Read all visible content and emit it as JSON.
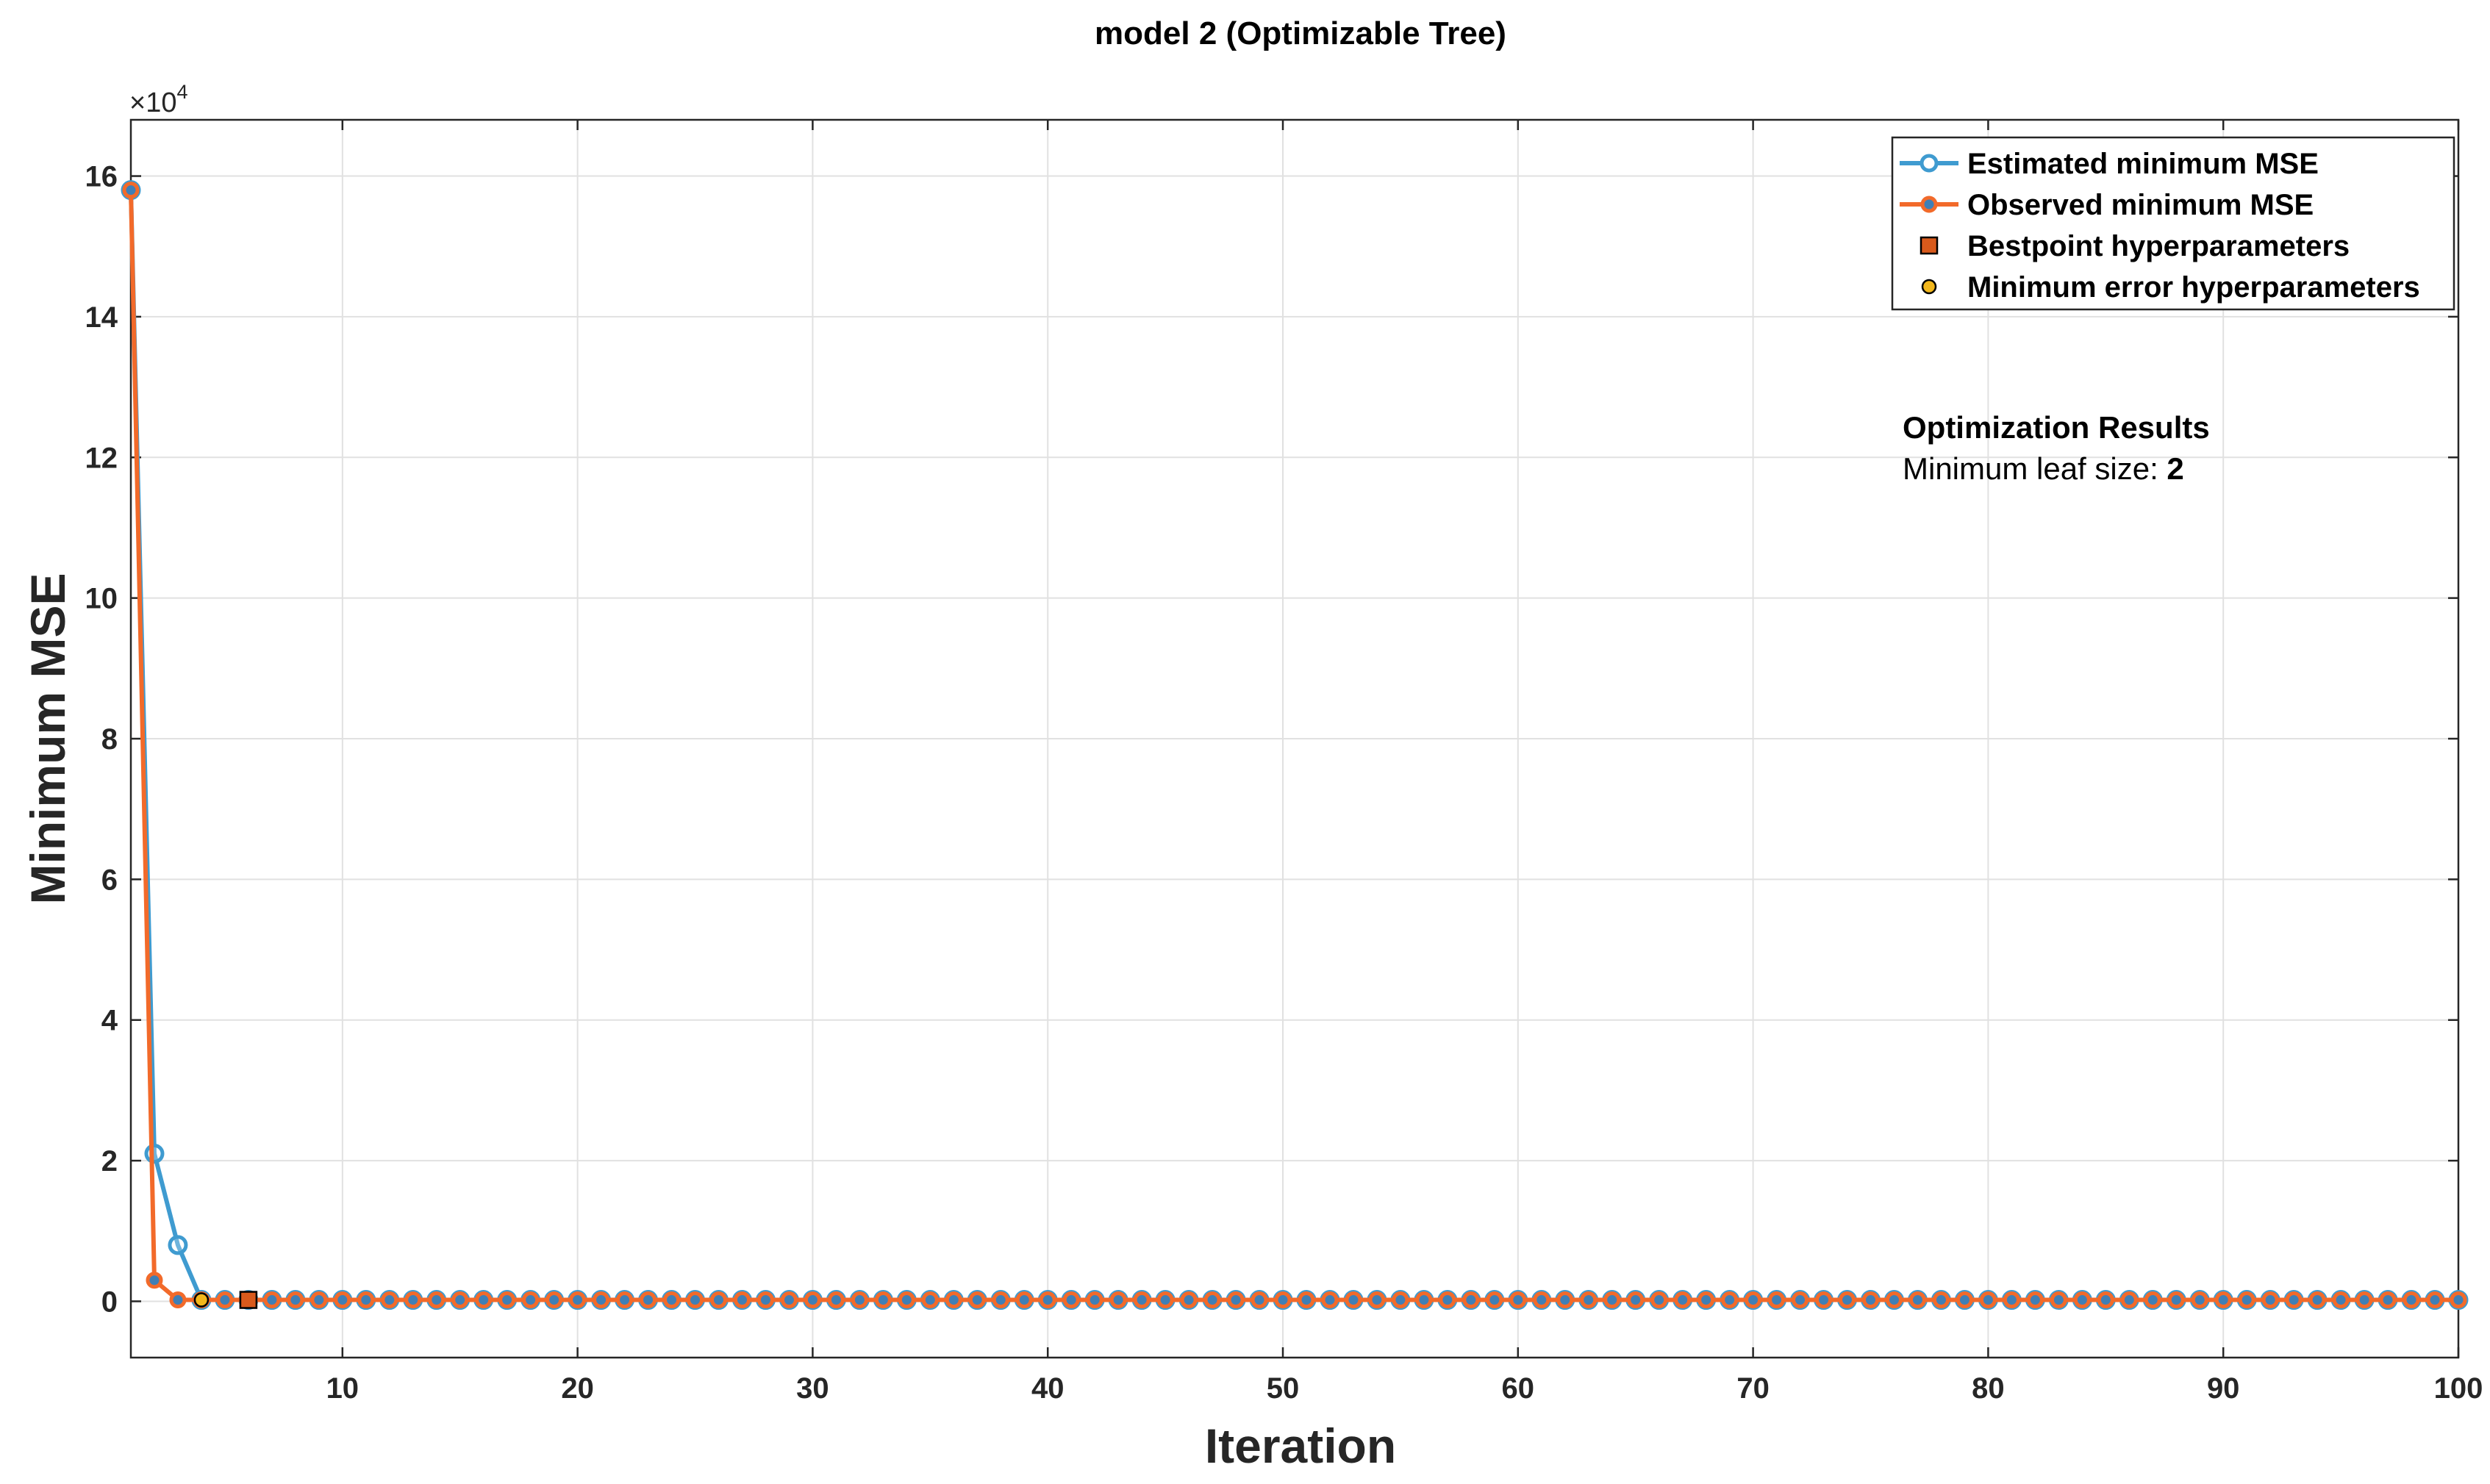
{
  "chart_data": {
    "type": "line",
    "title": "model 2 (Optimizable Tree)",
    "xlabel": "Iteration",
    "ylabel": "Minimum MSE",
    "y_exponent_label": "×10",
    "y_exponent_power": "4",
    "xlim": [
      1,
      100
    ],
    "ylim": [
      -0.8,
      16.8
    ],
    "x_ticks": [
      10,
      20,
      30,
      40,
      50,
      60,
      70,
      80,
      90,
      100
    ],
    "y_ticks": [
      0,
      2,
      4,
      6,
      8,
      10,
      12,
      14,
      16
    ],
    "grid": true,
    "legend_position": "top-right",
    "series": [
      {
        "name": "Estimated minimum MSE",
        "color": "#3f9bd0",
        "marker": "circle-open",
        "x_range": [
          1,
          100
        ],
        "values_head": [
          15.8,
          2.1,
          0.8,
          0.02
        ],
        "values_tail_constant": 0.02
      },
      {
        "name": "Observed minimum MSE",
        "color": "#f26a2a",
        "marker": "circle-filled",
        "x_range": [
          1,
          100
        ],
        "values_head": [
          15.8,
          0.3,
          0.02
        ],
        "values_tail_constant": 0.02
      }
    ],
    "points": [
      {
        "name": "Bestpoint hyperparameters",
        "x": 6,
        "y": 0.02,
        "color": "#d85a1c",
        "marker": "square"
      },
      {
        "name": "Minimum error hyperparameters",
        "x": 4,
        "y": 0.02,
        "color": "#f2b71c",
        "marker": "circle"
      }
    ],
    "annotation": {
      "heading": "Optimization Results",
      "line_label": "Minimum leaf size: ",
      "line_value": "2"
    }
  }
}
